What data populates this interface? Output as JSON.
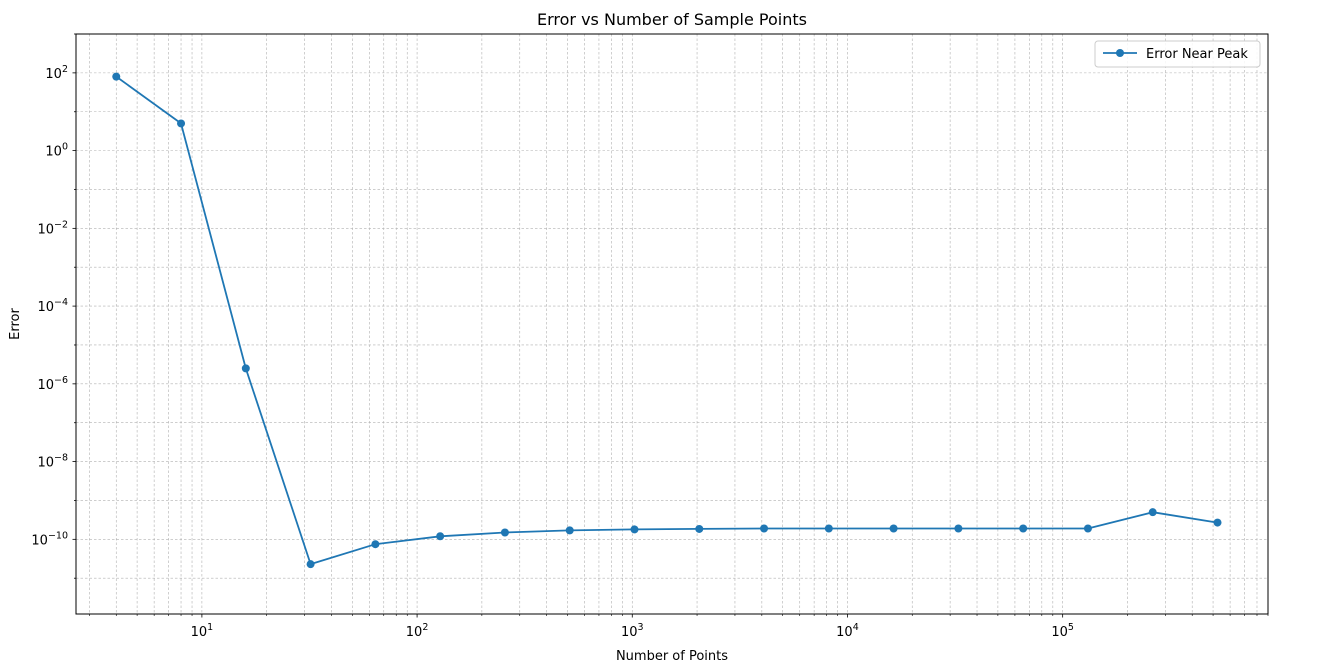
{
  "chart_data": {
    "type": "line",
    "title": "Error vs Number of Sample Points",
    "xlabel": "Number of Points",
    "ylabel": "Error",
    "xscale": "log",
    "yscale": "log",
    "xlim": [
      2.6,
      900000
    ],
    "ylim": [
      1.2e-12,
      1000
    ],
    "grid": true,
    "legend": "top-right",
    "x_ticks": [
      {
        "value": 10,
        "base": "10",
        "exp": "1"
      },
      {
        "value": 100,
        "base": "10",
        "exp": "2"
      },
      {
        "value": 1000,
        "base": "10",
        "exp": "3"
      },
      {
        "value": 10000,
        "base": "10",
        "exp": "4"
      },
      {
        "value": 100000,
        "base": "10",
        "exp": "5"
      }
    ],
    "y_ticks": [
      {
        "value": 1e-10,
        "base": "10",
        "exp": "−10"
      },
      {
        "value": 1e-08,
        "base": "10",
        "exp": "−8"
      },
      {
        "value": 1e-06,
        "base": "10",
        "exp": "−6"
      },
      {
        "value": 0.0001,
        "base": "10",
        "exp": "−4"
      },
      {
        "value": 0.01,
        "base": "10",
        "exp": "−2"
      },
      {
        "value": 1,
        "base": "10",
        "exp": "0"
      },
      {
        "value": 100,
        "base": "10",
        "exp": "2"
      }
    ],
    "series": [
      {
        "name": "Error Near Peak",
        "color": "#1f77b4",
        "marker": "circle",
        "x": [
          4,
          8,
          16,
          32,
          64,
          128,
          256,
          512,
          1024,
          2048,
          4096,
          8192,
          16384,
          32768,
          65536,
          131072,
          262144,
          524288
        ],
        "y": [
          80,
          5,
          2.5e-06,
          2.3e-11,
          7.5e-11,
          1.2e-10,
          1.5e-10,
          1.7e-10,
          1.8e-10,
          1.85e-10,
          1.9e-10,
          1.9e-10,
          1.9e-10,
          1.9e-10,
          1.9e-10,
          1.9e-10,
          5e-10,
          2.7e-10
        ]
      }
    ]
  }
}
